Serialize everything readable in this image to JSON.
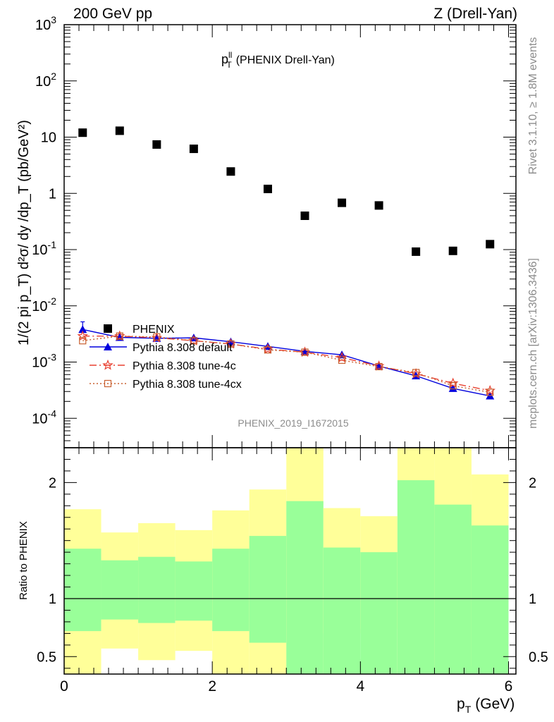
{
  "header": {
    "left": "200 GeV pp",
    "right": "Z (Drell-Yan)"
  },
  "side": {
    "rivet": "Rivet 3.1.10, ≥ 1.8M events",
    "source": "mcplots.cern.ch [arXiv:1306.3436]"
  },
  "chart_data": [
    {
      "type": "scatter",
      "panel": "main",
      "title_main": "p",
      "title_sup": "ll",
      "title_sub": "T",
      "title_rest": "(PHENIX Drell-Yan)",
      "analysis_label": "PHENIX_2019_I1672015",
      "ylabel": "1/(2 pi p_T) d²σ/ dy /dp_T (pb/GeV²)",
      "yscale": "log",
      "ylim": [
        3e-05,
        1000
      ],
      "xlim": [
        0,
        6.1
      ],
      "x": [
        0.25,
        0.75,
        1.25,
        1.75,
        2.25,
        2.75,
        3.25,
        3.75,
        4.25,
        4.75,
        5.25,
        5.75
      ],
      "y_tick_labels": [
        "10^-4",
        "10^-3",
        "10^-2",
        "10^-1",
        "1",
        "10",
        "10^2",
        "10^3"
      ],
      "legend": [
        "PHENIX",
        "Pythia 8.308 default",
        "Pythia 8.308 tune-4c",
        "Pythia 8.308 tune-4cx"
      ],
      "series": [
        {
          "name": "PHENIX",
          "color": "#000000",
          "marker": "square",
          "values": [
            12,
            13,
            7.4,
            6.2,
            2.45,
            1.2,
            0.4,
            0.68,
            0.61,
            0.092,
            0.095,
            0.125
          ]
        },
        {
          "name": "Pythia 8.308 default",
          "color": "#0000dd",
          "marker": "triangle",
          "line": "solid",
          "values": [
            0.0038,
            0.00275,
            0.00265,
            0.0027,
            0.0023,
            0.0019,
            0.00155,
            0.00135,
            0.00085,
            0.00057,
            0.00034,
            0.00025
          ],
          "err_upper": [
            0.0052,
            null,
            null,
            null,
            null,
            null,
            null,
            null,
            null,
            null,
            null,
            null
          ]
        },
        {
          "name": "Pythia 8.308 tune-4c",
          "color": "#e84030",
          "marker": "star",
          "line": "dashdot",
          "values": [
            0.0029,
            0.0029,
            0.0027,
            0.0024,
            0.0021,
            0.0017,
            0.0015,
            0.0012,
            0.00085,
            0.00062,
            0.00042,
            0.00031
          ]
        },
        {
          "name": "Pythia 8.308 tune-4cx",
          "color": "#c86030",
          "marker": "open-square",
          "line": "dotted",
          "values": [
            0.0024,
            0.0029,
            0.0028,
            0.0024,
            0.0021,
            0.00165,
            0.0015,
            0.00108,
            0.00083,
            0.00065,
            0.00038,
            0.00029
          ]
        }
      ]
    },
    {
      "type": "area",
      "panel": "ratio",
      "ylabel": "Ratio to PHENIX",
      "xlabel_main": "p",
      "xlabel_sub": "T",
      "xlabel_unit": "(GeV)",
      "ylim": [
        0.35,
        2.3
      ],
      "xlim": [
        0,
        6.1
      ],
      "x_ticks": [
        0,
        2,
        4,
        6
      ],
      "y_ticks": [
        0.5,
        1,
        2
      ],
      "bin_edges": [
        0,
        0.5,
        1,
        1.5,
        2,
        2.5,
        3,
        3.5,
        4,
        4.5,
        5,
        5.5,
        6
      ],
      "band_colors": {
        "inner": "#99ff99",
        "outer": "#ffff99"
      },
      "inner_band": {
        "low": [
          0.72,
          0.82,
          0.79,
          0.81,
          0.72,
          0.62,
          0.35,
          0.35,
          0.35,
          0.35,
          0.35,
          0.35
        ],
        "high": [
          1.43,
          1.33,
          1.36,
          1.32,
          1.43,
          1.54,
          1.84,
          1.44,
          1.4,
          2.02,
          1.81,
          1.63
        ]
      },
      "outer_band": {
        "low": [
          0.35,
          0.57,
          0.47,
          0.55,
          0.35,
          0.35,
          0.35,
          0.7,
          0.74,
          0.35,
          0.35,
          0.42
        ],
        "high": [
          1.77,
          1.57,
          1.65,
          1.59,
          1.76,
          1.94,
          2.3,
          1.78,
          1.71,
          2.3,
          2.3,
          2.07
        ]
      }
    }
  ]
}
